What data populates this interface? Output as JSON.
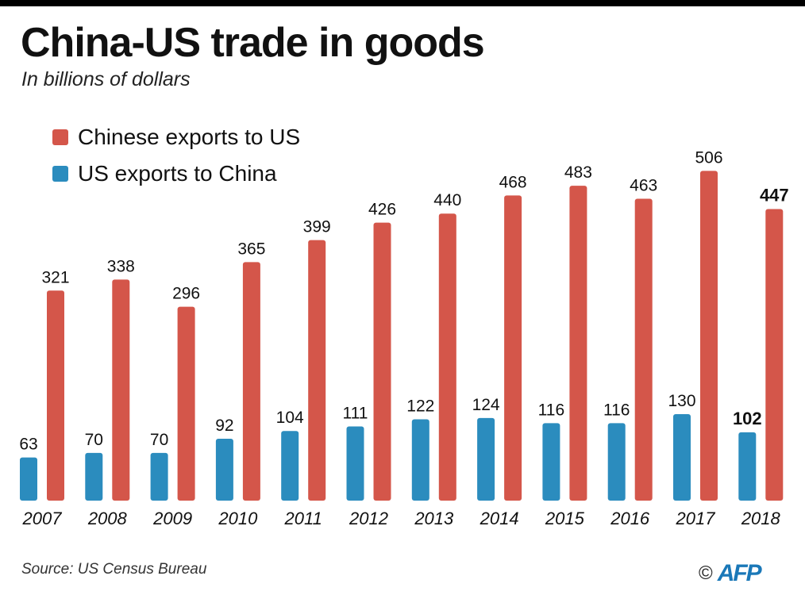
{
  "header": {
    "title": "China-US trade in goods",
    "subtitle": "In billions of dollars"
  },
  "legend": [
    {
      "label": "Chinese exports to US",
      "color": "#d4564a"
    },
    {
      "label": "US exports to China",
      "color": "#2b8cbe"
    }
  ],
  "chart_data": {
    "type": "bar",
    "categories": [
      "2007",
      "2008",
      "2009",
      "2010",
      "2011",
      "2012",
      "2013",
      "2014",
      "2015",
      "2016",
      "2017",
      "2018"
    ],
    "series": [
      {
        "name": "US exports to China",
        "color": "#2b8cbe",
        "values": [
          63,
          70,
          70,
          92,
          104,
          111,
          122,
          124,
          116,
          116,
          130,
          102
        ]
      },
      {
        "name": "Chinese exports to US",
        "color": "#d4564a",
        "values": [
          321,
          338,
          296,
          365,
          399,
          426,
          440,
          468,
          483,
          463,
          506,
          447
        ]
      }
    ],
    "ylim": [
      0,
      520
    ],
    "highlight_category": "2018",
    "grid": false,
    "legend_position": "top-left"
  },
  "footer": {
    "source": "Source: US Census Bureau",
    "copyright": "©",
    "logo": "AFP"
  }
}
